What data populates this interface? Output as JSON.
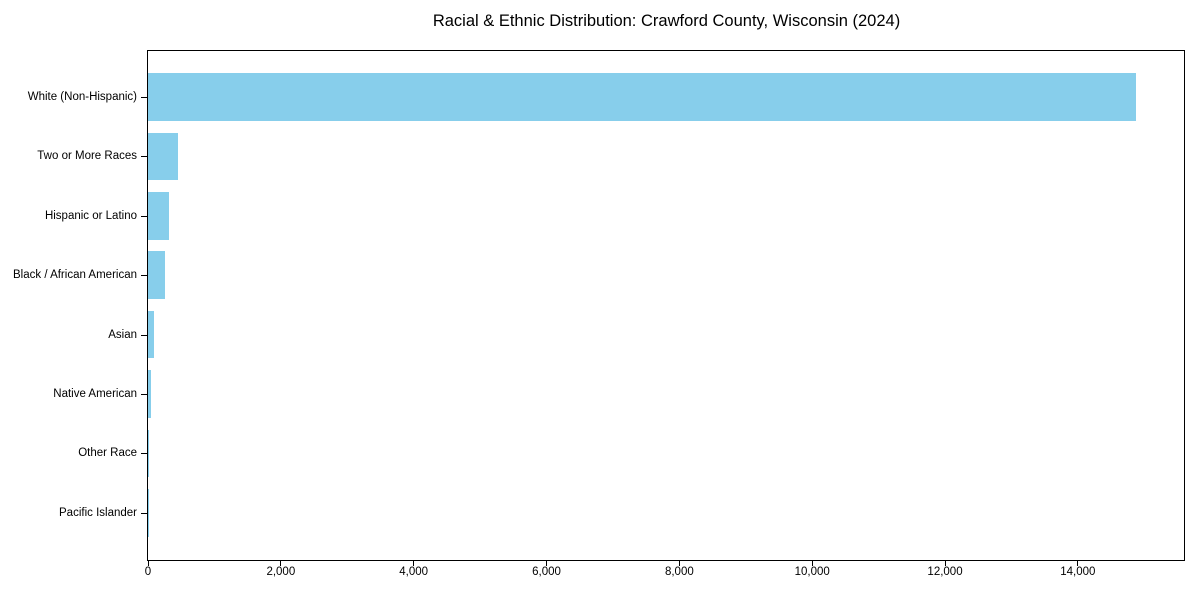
{
  "chart_data": {
    "type": "bar",
    "orientation": "horizontal",
    "title": "Racial & Ethnic Distribution: Crawford County, Wisconsin (2024)",
    "categories": [
      "White (Non-Hispanic)",
      "Two or More Races",
      "Hispanic or Latino",
      "Black / African American",
      "Asian",
      "Native American",
      "Other Race",
      "Pacific Islander"
    ],
    "values": [
      14870,
      455,
      320,
      255,
      90,
      45,
      20,
      5
    ],
    "xlabel": "",
    "ylabel": "",
    "xlim": [
      0,
      15613
    ],
    "xticks": [
      0,
      2000,
      4000,
      6000,
      8000,
      10000,
      12000,
      14000
    ],
    "xtick_labels": [
      "0",
      "2,000",
      "4,000",
      "6,000",
      "8,000",
      "10,000",
      "12,000",
      "14,000"
    ],
    "bar_color": "#87CEEB",
    "grid": false,
    "legend_position": "none"
  },
  "colors": {
    "bar": "#87CEEB",
    "axis": "#000000",
    "text": "#000000",
    "background": "#ffffff"
  }
}
